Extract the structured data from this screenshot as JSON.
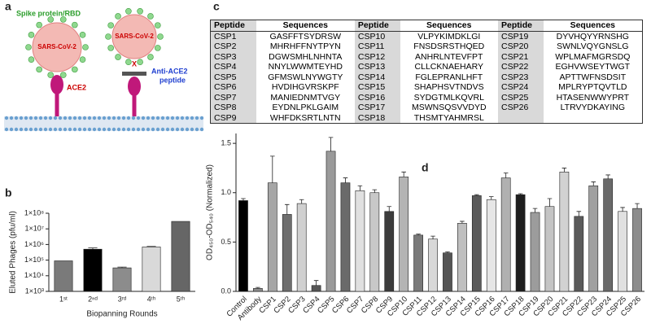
{
  "diagram": {
    "panel": "a",
    "spike_label": "Spike protein/RBD",
    "virus_labels": [
      "SARS-CoV-2",
      "SARS-CoV-2"
    ],
    "receptor_label": "ACE2",
    "block_mark": "X",
    "peptide_label": [
      "Anti-ACE2",
      "peptide"
    ]
  },
  "table": {
    "panel": "c",
    "header": [
      "Peptide",
      "Sequences",
      "Peptide",
      "Sequences",
      "Peptide",
      "Sequences"
    ],
    "rows": [
      [
        "CSP1",
        "GASFFTSYDRSW",
        "CSP10",
        "VLPYKIMDKLGI",
        "CSP19",
        "DYVHQYYRNSHG"
      ],
      [
        "CSP2",
        "MHRHFFNYTPYN",
        "CSP11",
        "FNSDSRSTHQED",
        "CSP20",
        "SWNLVQYGNSLG"
      ],
      [
        "CSP3",
        "DGWSMHLNHNTA",
        "CSP12",
        "ANHRLNTEVFPT",
        "CSP21",
        "WPLMAFMGRSDQ"
      ],
      [
        "CSP4",
        "NNYLWWMTEYHD",
        "CSP13",
        "CLLCKNAEHARY",
        "CSP22",
        "EGHVWSEYTWGT"
      ],
      [
        "CSP5",
        "GFMSWLNYWGTY",
        "CSP14",
        "FGLEPRANLHFT",
        "CSP23",
        "APTTWFNSDSIT"
      ],
      [
        "CSP6",
        "HVDIHGVRSKPF",
        "CSP15",
        "SHAPHSVTNDVS",
        "CSP24",
        "MPLRYPTQVTLD"
      ],
      [
        "CSP7",
        "MANIEDNMTVGY",
        "CSP16",
        "SYDGTMLKQVRL",
        "CSP25",
        "HTASENWWYPRT"
      ],
      [
        "CSP8",
        "EYDNLPKLGAIM",
        "CSP17",
        "MSWNSQSVVDYD",
        "CSP26",
        "LTRVYDKAYING"
      ],
      [
        "CSP9",
        "WHFDKSRTLNTN",
        "CSP18",
        "THSMTYAHMRSL"
      ]
    ]
  },
  "chart_data": [
    {
      "type": "bar",
      "panel": "b",
      "x_label": "Biopanning Rounds",
      "y_label": "Eluted Phages (pfu/ml)",
      "log_scale": true,
      "categories": [
        "1ˢᵗ",
        "2ⁿᵈ",
        "3ʳᵈ",
        "4ᵗʰ",
        "5ᵗʰ"
      ],
      "values": [
        90000,
        500000,
        32000,
        700000,
        30000000
      ],
      "errors": [
        null,
        100000,
        4000,
        50000,
        null
      ],
      "colors": [
        "#7a7a7a",
        "#000000",
        "#8c8c8c",
        "#d9d9d9",
        "#666666"
      ],
      "ylim": [
        1000,
        100000000
      ],
      "yticks": [
        {
          "value": 1000,
          "label": "1×10³"
        },
        {
          "value": 10000,
          "label": "1×10⁴"
        },
        {
          "value": 100000,
          "label": "1×10⁵"
        },
        {
          "value": 1000000,
          "label": "1×10⁶"
        },
        {
          "value": 10000000,
          "label": "1×10⁷"
        },
        {
          "value": 100000000,
          "label": "1×10⁸"
        }
      ]
    },
    {
      "type": "bar",
      "panel": "d",
      "y_label": "OD₄₅₀-OD₅₄₀ (Normalized)",
      "log_scale": false,
      "categories": [
        "Control",
        "Antibody",
        "CSP1",
        "CSP2",
        "CSP3",
        "CSP4",
        "CSP5",
        "CSP6",
        "CSP7",
        "CSP8",
        "CSP9",
        "CSP10",
        "CSP11",
        "CSP12",
        "CSP13",
        "CSP14",
        "CSP15",
        "CSP16",
        "CSP17",
        "CSP18",
        "CSP19",
        "CSP20",
        "CSP21",
        "CSP22",
        "CSP23",
        "CSP24",
        "CSP25",
        "CSP26"
      ],
      "values": [
        0.92,
        0.03,
        1.1,
        0.78,
        0.89,
        0.06,
        1.42,
        1.1,
        1.02,
        1.0,
        0.81,
        1.16,
        0.57,
        0.53,
        0.39,
        0.69,
        0.97,
        0.93,
        1.15,
        0.98,
        0.8,
        0.86,
        1.21,
        0.76,
        1.07,
        1.14,
        0.81,
        0.84
      ],
      "errors": [
        0.02,
        0.01,
        0.27,
        0.1,
        0.04,
        0.05,
        0.14,
        0.05,
        0.05,
        0.03,
        0.05,
        0.05,
        0.01,
        0.03,
        0.01,
        0.02,
        0.01,
        0.03,
        0.05,
        0.01,
        0.04,
        0.08,
        0.04,
        0.05,
        0.04,
        0.04,
        0.04,
        0.05
      ],
      "colors": [
        "#000000",
        "#8c8c8c",
        "#a6a6a6",
        "#6e6e6e",
        "#d0d0d0",
        "#555555",
        "#9a9a9a",
        "#6a6a6a",
        "#e0e0e0",
        "#c8c8c8",
        "#3c3c3c",
        "#b4b4b4",
        "#7a7a7a",
        "#d8d8d8",
        "#555555",
        "#bfbfbf",
        "#5a5a5a",
        "#e6e6e6",
        "#b0b0b0",
        "#1e1e1e",
        "#9c9c9c",
        "#c4c4c4",
        "#d2d2d2",
        "#5a5a5a",
        "#a0a0a0",
        "#6a6a6a",
        "#e0e0e0",
        "#8c8c8c"
      ],
      "ylim": [
        0,
        1.6
      ],
      "yticks": [
        {
          "value": 0,
          "label": "0.0"
        },
        {
          "value": 0.5,
          "label": "0.5"
        },
        {
          "value": 1,
          "label": "1.0"
        },
        {
          "value": 1.5,
          "label": "1.5"
        }
      ]
    }
  ]
}
